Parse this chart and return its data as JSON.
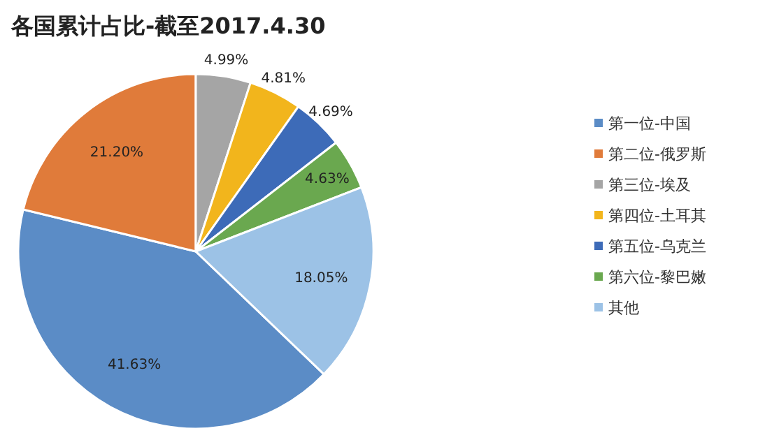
{
  "chart_data": {
    "type": "pie",
    "title": "各国累计占比-截至2017.4.30",
    "categories": [
      "第一位-中国",
      "第二位-俄罗斯",
      "第三位-埃及",
      "第四位-土耳其",
      "第五位-乌克兰",
      "第六位-黎巴嫩",
      "其他"
    ],
    "values": [
      41.63,
      21.2,
      4.99,
      4.81,
      4.69,
      4.63,
      18.05
    ],
    "colors": [
      "#5b8cc6",
      "#e07b3a",
      "#a5a5a5",
      "#f2b51c",
      "#3d6bb8",
      "#6aa84f",
      "#9cc2e6"
    ],
    "value_labels": [
      "41.63%",
      "21.20%",
      "4.99%",
      "4.81%",
      "4.69%",
      "4.63%",
      "18.05%"
    ],
    "legend": "right"
  }
}
